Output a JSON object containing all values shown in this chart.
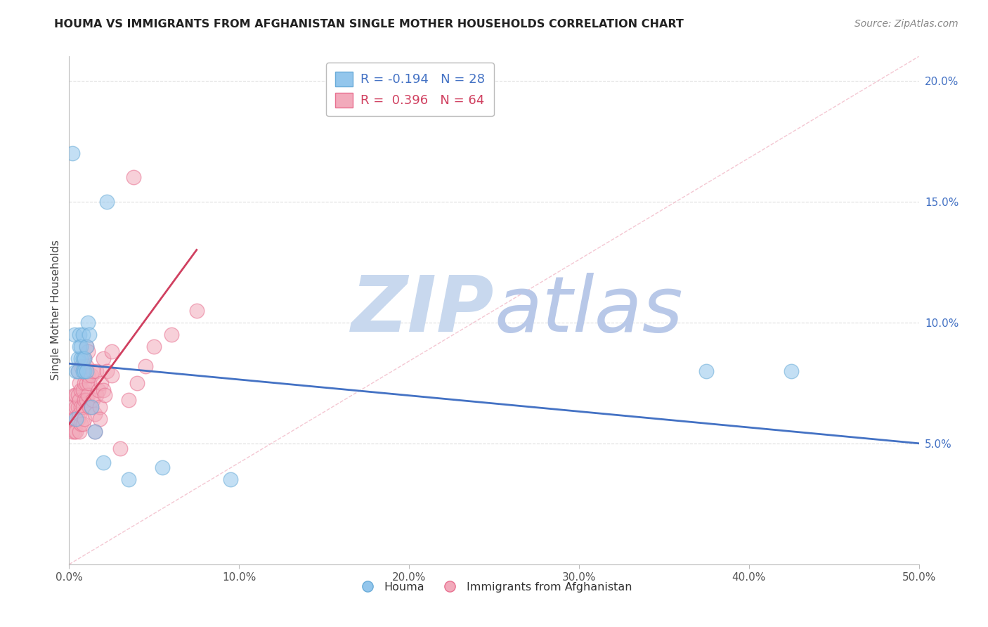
{
  "title": "HOUMA VS IMMIGRANTS FROM AFGHANISTAN SINGLE MOTHER HOUSEHOLDS CORRELATION CHART",
  "source": "Source: ZipAtlas.com",
  "ylabel": "Single Mother Households",
  "xlim": [
    0.0,
    0.5
  ],
  "ylim": [
    0.0,
    0.21
  ],
  "xticks": [
    0.0,
    0.1,
    0.2,
    0.3,
    0.4,
    0.5
  ],
  "xticklabels": [
    "0.0%",
    "10.0%",
    "20.0%",
    "30.0%",
    "40.0%",
    "50.0%"
  ],
  "yticks": [
    0.05,
    0.1,
    0.15,
    0.2
  ],
  "yticklabels": [
    "5.0%",
    "10.0%",
    "15.0%",
    "20.0%"
  ],
  "legend_r1": "R = -0.194",
  "legend_n1": "N = 28",
  "legend_r2": "R =  0.396",
  "legend_n2": "N = 64",
  "houma_color": "#93C6EC",
  "afghanistan_color": "#F2AABB",
  "houma_edge_color": "#6AACD8",
  "afghanistan_edge_color": "#E87090",
  "houma_line_color": "#4472C4",
  "afghanistan_line_color": "#D04060",
  "ref_line_color": "#F0B0C0",
  "grid_color": "#DDDDDD",
  "watermark_zip_color": "#C8D8EE",
  "watermark_atlas_color": "#B8C8E8",
  "houma_x": [
    0.002,
    0.003,
    0.004,
    0.004,
    0.005,
    0.005,
    0.006,
    0.006,
    0.007,
    0.007,
    0.008,
    0.008,
    0.008,
    0.009,
    0.009,
    0.01,
    0.01,
    0.011,
    0.012,
    0.013,
    0.015,
    0.02,
    0.022,
    0.035,
    0.055,
    0.095,
    0.375,
    0.425
  ],
  "houma_y": [
    0.17,
    0.095,
    0.06,
    0.08,
    0.08,
    0.085,
    0.09,
    0.095,
    0.085,
    0.09,
    0.08,
    0.085,
    0.095,
    0.08,
    0.085,
    0.08,
    0.09,
    0.1,
    0.095,
    0.065,
    0.055,
    0.042,
    0.15,
    0.035,
    0.04,
    0.035,
    0.08,
    0.08
  ],
  "afghanistan_x": [
    0.001,
    0.002,
    0.002,
    0.003,
    0.003,
    0.003,
    0.004,
    0.004,
    0.004,
    0.005,
    0.005,
    0.005,
    0.005,
    0.006,
    0.006,
    0.006,
    0.006,
    0.007,
    0.007,
    0.007,
    0.007,
    0.008,
    0.008,
    0.008,
    0.008,
    0.009,
    0.009,
    0.009,
    0.009,
    0.01,
    0.01,
    0.01,
    0.01,
    0.011,
    0.011,
    0.011,
    0.012,
    0.012,
    0.013,
    0.013,
    0.014,
    0.014,
    0.015,
    0.015,
    0.016,
    0.016,
    0.017,
    0.018,
    0.018,
    0.019,
    0.02,
    0.02,
    0.021,
    0.022,
    0.025,
    0.025,
    0.03,
    0.035,
    0.038,
    0.04,
    0.045,
    0.05,
    0.06,
    0.075
  ],
  "afghanistan_y": [
    0.06,
    0.055,
    0.065,
    0.055,
    0.06,
    0.07,
    0.055,
    0.065,
    0.07,
    0.06,
    0.065,
    0.07,
    0.08,
    0.055,
    0.062,
    0.068,
    0.075,
    0.058,
    0.065,
    0.072,
    0.082,
    0.058,
    0.065,
    0.072,
    0.082,
    0.06,
    0.068,
    0.075,
    0.085,
    0.068,
    0.075,
    0.082,
    0.09,
    0.07,
    0.078,
    0.088,
    0.065,
    0.075,
    0.065,
    0.078,
    0.068,
    0.08,
    0.055,
    0.062,
    0.07,
    0.08,
    0.072,
    0.065,
    0.06,
    0.075,
    0.072,
    0.085,
    0.07,
    0.08,
    0.078,
    0.088,
    0.048,
    0.068,
    0.16,
    0.075,
    0.082,
    0.09,
    0.095,
    0.105
  ],
  "houma_trendline_x": [
    0.0,
    0.5
  ],
  "houma_trendline_y": [
    0.083,
    0.05
  ],
  "afghanistan_trendline_x": [
    0.0,
    0.075
  ],
  "afghanistan_trendline_y": [
    0.058,
    0.13
  ],
  "ref_line_x": [
    0.0,
    0.5
  ],
  "ref_line_y": [
    0.0,
    0.21
  ]
}
